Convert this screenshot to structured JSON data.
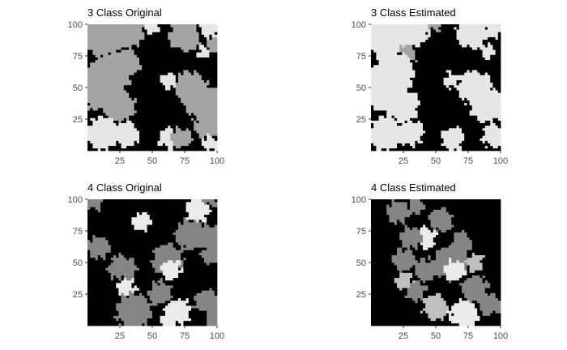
{
  "figure": {
    "background": "#ffffff",
    "text_color": "#000000",
    "tick_label_color": "#4d4d4d",
    "tick_color": "#333333"
  },
  "chart_data": [
    {
      "type": "heatmap",
      "title": "3 Class Original",
      "xlabel": "",
      "ylabel": "",
      "xlim": [
        0,
        100
      ],
      "ylim": [
        0,
        100
      ],
      "x_ticks": [
        25,
        50,
        75,
        100
      ],
      "y_ticks": [
        25,
        50,
        75,
        100
      ],
      "grid": false,
      "n_classes": 3,
      "class_colors": [
        "#000000",
        "#a4a4a4",
        "#e6e6e6"
      ],
      "blobs": [
        {
          "x": 75,
          "y": 91,
          "r": 12,
          "class": 1
        },
        {
          "x": 12,
          "y": 90,
          "r": 16,
          "class": 1
        },
        {
          "x": 30,
          "y": 95,
          "r": 14,
          "class": 1
        },
        {
          "x": 94,
          "y": 96,
          "r": 7,
          "class": 2
        },
        {
          "x": 50,
          "y": 100,
          "r": 6,
          "class": 2
        },
        {
          "x": 90,
          "y": 78,
          "r": 5,
          "class": 2
        },
        {
          "x": 97,
          "y": 84,
          "r": 6,
          "class": 1
        },
        {
          "x": 10,
          "y": 50,
          "r": 18,
          "class": 1
        },
        {
          "x": 18,
          "y": 62,
          "r": 16,
          "class": 1
        },
        {
          "x": 30,
          "y": 70,
          "r": 11,
          "class": 1
        },
        {
          "x": 24,
          "y": 36,
          "r": 13,
          "class": 1
        },
        {
          "x": 80,
          "y": 50,
          "r": 13,
          "class": 1
        },
        {
          "x": 90,
          "y": 38,
          "r": 14,
          "class": 1
        },
        {
          "x": 95,
          "y": 22,
          "r": 12,
          "class": 1
        },
        {
          "x": 62,
          "y": 56,
          "r": 6,
          "class": 2
        },
        {
          "x": 12,
          "y": 14,
          "r": 13,
          "class": 2
        },
        {
          "x": 30,
          "y": 14,
          "r": 10,
          "class": 2
        },
        {
          "x": 63,
          "y": 10,
          "r": 8,
          "class": 2
        },
        {
          "x": 72,
          "y": 10,
          "r": 8,
          "class": 1
        },
        {
          "x": 95,
          "y": 6,
          "r": 6,
          "class": 2
        }
      ]
    },
    {
      "type": "heatmap",
      "title": "3 Class Estimated",
      "xlabel": "",
      "ylabel": "",
      "xlim": [
        0,
        100
      ],
      "ylim": [
        0,
        100
      ],
      "x_ticks": [
        25,
        50,
        75,
        100
      ],
      "y_ticks": [
        25,
        50,
        75,
        100
      ],
      "grid": false,
      "n_classes": 3,
      "class_colors": [
        "#000000",
        "#a4a4a4",
        "#e6e6e6"
      ],
      "blobs": [
        {
          "x": 12,
          "y": 90,
          "r": 16,
          "class": 2
        },
        {
          "x": 32,
          "y": 95,
          "r": 13,
          "class": 2
        },
        {
          "x": 78,
          "y": 93,
          "r": 12,
          "class": 2
        },
        {
          "x": 94,
          "y": 96,
          "r": 7,
          "class": 2
        },
        {
          "x": 50,
          "y": 100,
          "r": 5,
          "class": 1
        },
        {
          "x": 28,
          "y": 76,
          "r": 7,
          "class": 1
        },
        {
          "x": 90,
          "y": 78,
          "r": 5,
          "class": 2
        },
        {
          "x": 10,
          "y": 50,
          "r": 18,
          "class": 2
        },
        {
          "x": 18,
          "y": 62,
          "r": 16,
          "class": 2
        },
        {
          "x": 24,
          "y": 36,
          "r": 13,
          "class": 2
        },
        {
          "x": 12,
          "y": 14,
          "r": 13,
          "class": 2
        },
        {
          "x": 30,
          "y": 14,
          "r": 10,
          "class": 2
        },
        {
          "x": 80,
          "y": 50,
          "r": 13,
          "class": 2
        },
        {
          "x": 90,
          "y": 36,
          "r": 14,
          "class": 2
        },
        {
          "x": 62,
          "y": 56,
          "r": 6,
          "class": 2
        },
        {
          "x": 63,
          "y": 10,
          "r": 9,
          "class": 2
        },
        {
          "x": 95,
          "y": 12,
          "r": 9,
          "class": 2
        }
      ]
    },
    {
      "type": "heatmap",
      "title": "4 Class Original",
      "xlabel": "",
      "ylabel": "",
      "xlim": [
        0,
        100
      ],
      "ylim": [
        0,
        100
      ],
      "x_ticks": [
        25,
        50,
        75,
        100
      ],
      "y_ticks": [
        25,
        50,
        75,
        100
      ],
      "grid": false,
      "n_classes": 4,
      "class_colors": [
        "#000000",
        "#858585",
        "#bfbfbf",
        "#ebebeb"
      ],
      "blobs": [
        {
          "x": 6,
          "y": 82,
          "r": 12,
          "class": 0
        },
        {
          "x": 5,
          "y": 98,
          "r": 6,
          "class": 1
        },
        {
          "x": 8,
          "y": 62,
          "r": 9,
          "class": 1
        },
        {
          "x": 42,
          "y": 82,
          "r": 7,
          "class": 3
        },
        {
          "x": 85,
          "y": 92,
          "r": 10,
          "class": 3
        },
        {
          "x": 96,
          "y": 100,
          "r": 5,
          "class": 1
        },
        {
          "x": 80,
          "y": 72,
          "r": 12,
          "class": 1
        },
        {
          "x": 92,
          "y": 70,
          "r": 10,
          "class": 1
        },
        {
          "x": 95,
          "y": 56,
          "r": 7,
          "class": 1
        },
        {
          "x": 62,
          "y": 52,
          "r": 12,
          "class": 1
        },
        {
          "x": 64,
          "y": 44,
          "r": 8,
          "class": 3
        },
        {
          "x": 26,
          "y": 44,
          "r": 11,
          "class": 1
        },
        {
          "x": 14,
          "y": 18,
          "r": 18,
          "class": 0
        },
        {
          "x": 24,
          "y": 28,
          "r": 10,
          "class": 0
        },
        {
          "x": 30,
          "y": 30,
          "r": 7,
          "class": 3
        },
        {
          "x": 36,
          "y": 12,
          "r": 14,
          "class": 1
        },
        {
          "x": 56,
          "y": 26,
          "r": 9,
          "class": 1
        },
        {
          "x": 70,
          "y": 12,
          "r": 10,
          "class": 3
        },
        {
          "x": 62,
          "y": 4,
          "r": 6,
          "class": 3
        },
        {
          "x": 92,
          "y": 18,
          "r": 10,
          "class": 1
        },
        {
          "x": 98,
          "y": 6,
          "r": 7,
          "class": 1
        },
        {
          "x": 86,
          "y": 8,
          "r": 5,
          "class": 0
        }
      ]
    },
    {
      "type": "heatmap",
      "title": "4 Class Estimated",
      "xlabel": "",
      "ylabel": "",
      "xlim": [
        0,
        100
      ],
      "ylim": [
        0,
        100
      ],
      "x_ticks": [
        25,
        50,
        75,
        100
      ],
      "y_ticks": [
        25,
        50,
        75,
        100
      ],
      "grid": false,
      "n_classes": 4,
      "class_colors": [
        "#000000",
        "#858585",
        "#bfbfbf",
        "#ebebeb"
      ],
      "blobs": [
        {
          "x": 6,
          "y": 82,
          "r": 14,
          "class": 0
        },
        {
          "x": 8,
          "y": 56,
          "r": 9,
          "class": 0
        },
        {
          "x": 20,
          "y": 90,
          "r": 9,
          "class": 1
        },
        {
          "x": 34,
          "y": 94,
          "r": 6,
          "class": 1
        },
        {
          "x": 54,
          "y": 84,
          "r": 9,
          "class": 1
        },
        {
          "x": 42,
          "y": 70,
          "r": 8,
          "class": 3
        },
        {
          "x": 30,
          "y": 70,
          "r": 9,
          "class": 1
        },
        {
          "x": 74,
          "y": 94,
          "r": 10,
          "class": 0
        },
        {
          "x": 94,
          "y": 94,
          "r": 10,
          "class": 0
        },
        {
          "x": 90,
          "y": 70,
          "r": 13,
          "class": 0
        },
        {
          "x": 70,
          "y": 66,
          "r": 8,
          "class": 1
        },
        {
          "x": 62,
          "y": 50,
          "r": 14,
          "class": 1
        },
        {
          "x": 64,
          "y": 44,
          "r": 8,
          "class": 3
        },
        {
          "x": 80,
          "y": 50,
          "r": 7,
          "class": 2
        },
        {
          "x": 26,
          "y": 52,
          "r": 9,
          "class": 1
        },
        {
          "x": 42,
          "y": 44,
          "r": 9,
          "class": 1
        },
        {
          "x": 14,
          "y": 24,
          "r": 15,
          "class": 0
        },
        {
          "x": 8,
          "y": 8,
          "r": 10,
          "class": 0
        },
        {
          "x": 34,
          "y": 28,
          "r": 8,
          "class": 1
        },
        {
          "x": 26,
          "y": 36,
          "r": 6,
          "class": 2
        },
        {
          "x": 50,
          "y": 14,
          "r": 10,
          "class": 2
        },
        {
          "x": 72,
          "y": 10,
          "r": 11,
          "class": 3
        },
        {
          "x": 80,
          "y": 30,
          "r": 10,
          "class": 1
        },
        {
          "x": 92,
          "y": 16,
          "r": 9,
          "class": 1
        },
        {
          "x": 98,
          "y": 40,
          "r": 7,
          "class": 0
        },
        {
          "x": 96,
          "y": 4,
          "r": 6,
          "class": 0
        }
      ]
    }
  ]
}
